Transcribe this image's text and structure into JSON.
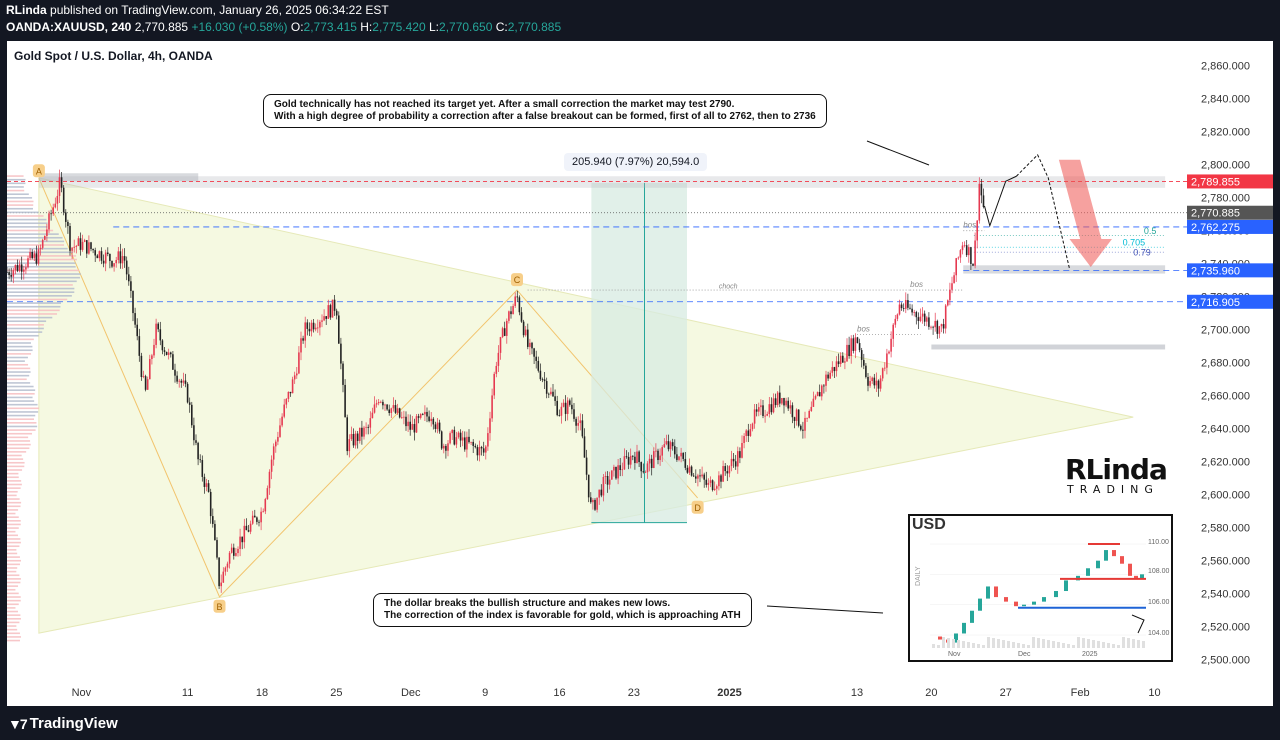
{
  "header": {
    "author": "RLinda",
    "published_text": "published on TradingView.com, January 26, 2025 06:34:22 EST",
    "symbol": "OANDA:XAUUSD, 240",
    "last": "2,770.885",
    "change": "+16.030 (+0.58%)",
    "ohlc_o_label": "O:",
    "ohlc_o": "2,773.415",
    "ohlc_h_label": "H:",
    "ohlc_h": "2,775.420",
    "ohlc_l_label": "L:",
    "ohlc_l": "2,770.650",
    "ohlc_c_label": "C:",
    "ohlc_c": "2,770.885"
  },
  "chart_title": "Gold Spot / U.S. Dollar, 4h, OANDA",
  "footer": {
    "brand": "TradingView"
  },
  "logo": {
    "name": "RLinda",
    "sub": "TRADING"
  },
  "inset": {
    "title": "USD",
    "side_label": "DAILY",
    "ticks": [
      "110.00",
      "108.00",
      "106.00",
      "104.00"
    ],
    "x_ticks": [
      "Nov",
      "Dec",
      "2025"
    ]
  },
  "annotations": {
    "top_note_line1": "Gold technically has not reached its target yet. After a small correction the market may test 2790.",
    "top_note_line2": "With a high degree of probability a correction after a false breakout can be formed, first of all to 2762, then to 2736",
    "bottom_note_line1": "The dollar breaks the bullish structure and makes new lows.",
    "bottom_note_line2": "The correction of the index is favorable for gold, which is approaching ATH",
    "measure": "205.940 (7.97%) 20,594.0",
    "points": [
      "A",
      "B",
      "C",
      "D"
    ],
    "bos": "bos",
    "choch": "choch",
    "fib": [
      "0.5",
      "0.705",
      "0.79"
    ]
  },
  "colors": {
    "up": "#26a69a",
    "down": "#ef5350",
    "candle_up": "#e53950",
    "candle_down": "#222222",
    "accent_blue": "#2962ff",
    "red_label": "#f23645"
  },
  "chart_data": {
    "type": "candlestick",
    "symbol": "XAUUSD",
    "timeframe": "4h",
    "y_ticks": [
      2500,
      2520,
      2540,
      2560,
      2580,
      2600,
      2620,
      2640,
      2660,
      2680,
      2700,
      2720,
      2740,
      2760,
      2780,
      2800,
      2820,
      2840,
      2860
    ],
    "y_tick_labels": [
      "2,500.000",
      "2,520.000",
      "2,540.000",
      "2,560.000",
      "2,580.000",
      "2,600.000",
      "2,620.000",
      "2,640.000",
      "2,660.000",
      "2,680.000",
      "2,700.000",
      "2,720.000",
      "2,740.000",
      "2,760.000",
      "2,780.000",
      "2,800.000",
      "2,820.000",
      "2,840.000",
      "2,860.000"
    ],
    "ylim": [
      2487,
      2875
    ],
    "x_labels": [
      "Nov",
      "11",
      "18",
      "25",
      "Dec",
      "9",
      "16",
      "23",
      "2025",
      "13",
      "20",
      "27",
      "Feb",
      "10"
    ],
    "x_label_dates": [
      "2024-11-01",
      "2024-11-11",
      "2024-11-18",
      "2024-11-25",
      "2024-12-02",
      "2024-12-09",
      "2024-12-16",
      "2024-12-23",
      "2025-01-01",
      "2025-01-13",
      "2025-01-20",
      "2025-01-27",
      "2025-02-03",
      "2025-02-10"
    ],
    "price_labels": [
      {
        "value": 2789.855,
        "text": "2,789.855",
        "color": "#f23645"
      },
      {
        "value": 2770.885,
        "text": "2,770.885",
        "color": "#555555"
      },
      {
        "value": 2762.275,
        "text": "2,762.275",
        "color": "#2962ff"
      },
      {
        "value": 2735.96,
        "text": "2,735.960",
        "color": "#2962ff"
      },
      {
        "value": 2716.905,
        "text": "2,716.905",
        "color": "#2962ff"
      }
    ],
    "close_path": [
      {
        "date": "2024-10-25",
        "price": 2735
      },
      {
        "date": "2024-10-28",
        "price": 2745
      },
      {
        "date": "2024-10-30",
        "price": 2789
      },
      {
        "date": "2024-10-31",
        "price": 2750
      },
      {
        "date": "2024-11-01",
        "price": 2752
      },
      {
        "date": "2024-11-04",
        "price": 2742
      },
      {
        "date": "2024-11-05",
        "price": 2745
      },
      {
        "date": "2024-11-06",
        "price": 2705
      },
      {
        "date": "2024-11-07",
        "price": 2660
      },
      {
        "date": "2024-11-08",
        "price": 2700
      },
      {
        "date": "2024-11-11",
        "price": 2660
      },
      {
        "date": "2024-11-12",
        "price": 2620
      },
      {
        "date": "2024-11-13",
        "price": 2600
      },
      {
        "date": "2024-11-14",
        "price": 2545
      },
      {
        "date": "2024-11-15",
        "price": 2565
      },
      {
        "date": "2024-11-18",
        "price": 2590
      },
      {
        "date": "2024-11-19",
        "price": 2625
      },
      {
        "date": "2024-11-20",
        "price": 2650
      },
      {
        "date": "2024-11-21",
        "price": 2670
      },
      {
        "date": "2024-11-22",
        "price": 2700
      },
      {
        "date": "2024-11-25",
        "price": 2715
      },
      {
        "date": "2024-11-26",
        "price": 2630
      },
      {
        "date": "2024-11-27",
        "price": 2635
      },
      {
        "date": "2024-11-28",
        "price": 2640
      },
      {
        "date": "2024-11-29",
        "price": 2660
      },
      {
        "date": "2024-12-02",
        "price": 2640
      },
      {
        "date": "2024-12-03",
        "price": 2645
      },
      {
        "date": "2024-12-04",
        "price": 2650
      },
      {
        "date": "2024-12-05",
        "price": 2630
      },
      {
        "date": "2024-12-06",
        "price": 2635
      },
      {
        "date": "2024-12-09",
        "price": 2625
      },
      {
        "date": "2024-12-10",
        "price": 2680
      },
      {
        "date": "2024-12-11",
        "price": 2705
      },
      {
        "date": "2024-12-12",
        "price": 2720
      },
      {
        "date": "2024-12-13",
        "price": 2690
      },
      {
        "date": "2024-12-16",
        "price": 2650
      },
      {
        "date": "2024-12-17",
        "price": 2655
      },
      {
        "date": "2024-12-18",
        "price": 2640
      },
      {
        "date": "2024-12-19",
        "price": 2590
      },
      {
        "date": "2024-12-20",
        "price": 2605
      },
      {
        "date": "2024-12-23",
        "price": 2625
      },
      {
        "date": "2024-12-24",
        "price": 2615
      },
      {
        "date": "2024-12-26",
        "price": 2630
      },
      {
        "date": "2024-12-27",
        "price": 2625
      },
      {
        "date": "2024-12-30",
        "price": 2605
      },
      {
        "date": "2024-12-31",
        "price": 2610
      },
      {
        "date": "2025-01-02",
        "price": 2625
      },
      {
        "date": "2025-01-03",
        "price": 2645
      },
      {
        "date": "2025-01-06",
        "price": 2660
      },
      {
        "date": "2025-01-07",
        "price": 2650
      },
      {
        "date": "2025-01-08",
        "price": 2640
      },
      {
        "date": "2025-01-09",
        "price": 2655
      },
      {
        "date": "2025-01-10",
        "price": 2670
      },
      {
        "date": "2025-01-13",
        "price": 2695
      },
      {
        "date": "2025-01-14",
        "price": 2670
      },
      {
        "date": "2025-01-15",
        "price": 2665
      },
      {
        "date": "2025-01-16",
        "price": 2690
      },
      {
        "date": "2025-01-17",
        "price": 2715
      },
      {
        "date": "2025-01-20",
        "price": 2705
      },
      {
        "date": "2025-01-21",
        "price": 2700
      },
      {
        "date": "2025-01-22",
        "price": 2730
      },
      {
        "date": "2025-01-23",
        "price": 2755
      },
      {
        "date": "2025-01-24",
        "price": 2740
      },
      {
        "date": "2025-01-24T12:00",
        "price": 2789
      },
      {
        "date": "2025-01-25",
        "price": 2770.885
      }
    ]
  }
}
